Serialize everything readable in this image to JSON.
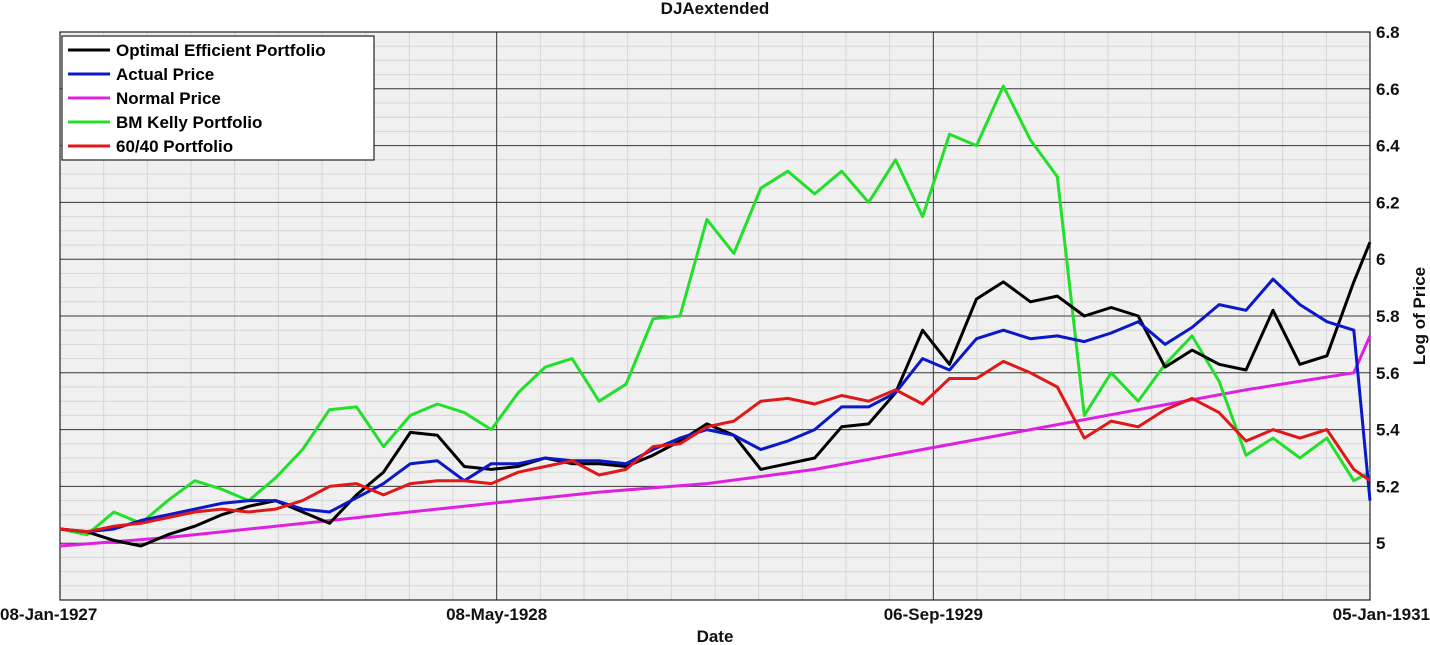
{
  "chart_data": {
    "type": "line",
    "title": "DJAextended",
    "xlabel": "Date",
    "ylabel": "Log of Price",
    "x_range": [
      "1927-01-08",
      "1931-01-05"
    ],
    "x_tick_labels": [
      {
        "date": "1927-01-08",
        "label": "08-Jan-1927"
      },
      {
        "date": "1928-05-08",
        "label": "08-May-1928"
      },
      {
        "date": "1929-09-06",
        "label": "06-Sep-1929"
      },
      {
        "date": "1931-01-05",
        "label": "05-Jan-1931"
      }
    ],
    "ylim": [
      4.8,
      6.8
    ],
    "y_ticks": [
      5,
      5.2,
      5.4,
      5.6,
      5.8,
      6,
      6.2,
      6.4,
      6.6,
      6.8
    ],
    "y_tick_labels": [
      "5",
      "5.2",
      "5.4",
      "5.6",
      "5.8",
      "6",
      "6.2",
      "6.4",
      "6.6",
      "6.8"
    ],
    "y_axis_side": "right",
    "grid": true,
    "legend_position": "top-left",
    "series": [
      {
        "name": "Optimal Efficient Portfolio",
        "color": "#000000",
        "points": [
          [
            "1927-01-08",
            5.05
          ],
          [
            "1927-02-07",
            5.04
          ],
          [
            "1927-03-09",
            5.01
          ],
          [
            "1927-04-08",
            4.99
          ],
          [
            "1927-05-08",
            5.03
          ],
          [
            "1927-06-07",
            5.06
          ],
          [
            "1927-07-07",
            5.1
          ],
          [
            "1927-08-06",
            5.13
          ],
          [
            "1927-09-05",
            5.15
          ],
          [
            "1927-10-05",
            5.11
          ],
          [
            "1927-11-04",
            5.07
          ],
          [
            "1927-12-04",
            5.17
          ],
          [
            "1928-01-03",
            5.25
          ],
          [
            "1928-02-02",
            5.39
          ],
          [
            "1928-03-03",
            5.38
          ],
          [
            "1928-04-02",
            5.27
          ],
          [
            "1928-05-02",
            5.26
          ],
          [
            "1928-06-01",
            5.27
          ],
          [
            "1928-07-01",
            5.3
          ],
          [
            "1928-07-31",
            5.28
          ],
          [
            "1928-08-30",
            5.28
          ],
          [
            "1928-09-29",
            5.27
          ],
          [
            "1928-10-29",
            5.31
          ],
          [
            "1928-11-28",
            5.36
          ],
          [
            "1928-12-28",
            5.42
          ],
          [
            "1929-01-27",
            5.38
          ],
          [
            "1929-02-26",
            5.26
          ],
          [
            "1929-03-28",
            5.28
          ],
          [
            "1929-04-27",
            5.3
          ],
          [
            "1929-05-27",
            5.41
          ],
          [
            "1929-06-26",
            5.42
          ],
          [
            "1929-07-26",
            5.53
          ],
          [
            "1929-08-25",
            5.75
          ],
          [
            "1929-09-24",
            5.63
          ],
          [
            "1929-10-24",
            5.86
          ],
          [
            "1929-11-23",
            5.92
          ],
          [
            "1929-12-23",
            5.85
          ],
          [
            "1930-01-22",
            5.87
          ],
          [
            "1930-02-21",
            5.8
          ],
          [
            "1930-03-23",
            5.83
          ],
          [
            "1930-04-22",
            5.8
          ],
          [
            "1930-05-22",
            5.62
          ],
          [
            "1930-06-21",
            5.68
          ],
          [
            "1930-07-21",
            5.63
          ],
          [
            "1930-08-20",
            5.61
          ],
          [
            "1930-09-19",
            5.82
          ],
          [
            "1930-10-19",
            5.63
          ],
          [
            "1930-11-18",
            5.66
          ],
          [
            "1930-12-18",
            5.92
          ],
          [
            "1931-01-05",
            6.06
          ]
        ]
      },
      {
        "name": "Actual Price",
        "color": "#0a18c8",
        "points": [
          [
            "1927-01-08",
            5.05
          ],
          [
            "1927-02-07",
            5.04
          ],
          [
            "1927-03-09",
            5.05
          ],
          [
            "1927-04-08",
            5.08
          ],
          [
            "1927-05-08",
            5.1
          ],
          [
            "1927-06-07",
            5.12
          ],
          [
            "1927-07-07",
            5.14
          ],
          [
            "1927-08-06",
            5.15
          ],
          [
            "1927-09-05",
            5.15
          ],
          [
            "1927-10-05",
            5.12
          ],
          [
            "1927-11-04",
            5.11
          ],
          [
            "1927-12-04",
            5.16
          ],
          [
            "1928-01-03",
            5.21
          ],
          [
            "1928-02-02",
            5.28
          ],
          [
            "1928-03-03",
            5.29
          ],
          [
            "1928-04-02",
            5.22
          ],
          [
            "1928-05-02",
            5.28
          ],
          [
            "1928-06-01",
            5.28
          ],
          [
            "1928-07-01",
            5.3
          ],
          [
            "1928-07-31",
            5.29
          ],
          [
            "1928-08-30",
            5.29
          ],
          [
            "1928-09-29",
            5.28
          ],
          [
            "1928-10-29",
            5.33
          ],
          [
            "1928-11-28",
            5.37
          ],
          [
            "1928-12-28",
            5.4
          ],
          [
            "1929-01-27",
            5.38
          ],
          [
            "1929-02-26",
            5.33
          ],
          [
            "1929-03-28",
            5.36
          ],
          [
            "1929-04-27",
            5.4
          ],
          [
            "1929-05-27",
            5.48
          ],
          [
            "1929-06-26",
            5.48
          ],
          [
            "1929-07-26",
            5.53
          ],
          [
            "1929-08-25",
            5.65
          ],
          [
            "1929-09-24",
            5.61
          ],
          [
            "1929-10-24",
            5.72
          ],
          [
            "1929-11-23",
            5.75
          ],
          [
            "1929-12-23",
            5.72
          ],
          [
            "1930-01-22",
            5.73
          ],
          [
            "1930-02-21",
            5.71
          ],
          [
            "1930-03-23",
            5.74
          ],
          [
            "1930-04-22",
            5.78
          ],
          [
            "1930-05-22",
            5.7
          ],
          [
            "1930-06-21",
            5.76
          ],
          [
            "1930-07-21",
            5.84
          ],
          [
            "1930-08-20",
            5.82
          ],
          [
            "1930-09-19",
            5.93
          ],
          [
            "1930-10-19",
            5.84
          ],
          [
            "1930-11-18",
            5.78
          ],
          [
            "1930-12-18",
            5.75
          ],
          [
            "1931-01-05",
            5.15
          ]
        ]
      },
      {
        "name": "Normal Price",
        "color": "#e020e0",
        "points": [
          [
            "1927-01-08",
            4.99
          ],
          [
            "1927-05-08",
            5.02
          ],
          [
            "1927-09-05",
            5.06
          ],
          [
            "1928-01-03",
            5.1
          ],
          [
            "1928-05-02",
            5.14
          ],
          [
            "1928-08-30",
            5.18
          ],
          [
            "1928-12-28",
            5.21
          ],
          [
            "1929-04-27",
            5.26
          ],
          [
            "1929-08-25",
            5.33
          ],
          [
            "1929-12-23",
            5.4
          ],
          [
            "1930-04-22",
            5.47
          ],
          [
            "1930-08-20",
            5.54
          ],
          [
            "1930-12-18",
            5.6
          ],
          [
            "1931-01-05",
            5.73
          ]
        ]
      },
      {
        "name": "BM Kelly Portfolio",
        "color": "#22e02a",
        "points": [
          [
            "1927-01-08",
            5.05
          ],
          [
            "1927-02-07",
            5.03
          ],
          [
            "1927-03-09",
            5.11
          ],
          [
            "1927-04-08",
            5.07
          ],
          [
            "1927-05-08",
            5.15
          ],
          [
            "1927-06-07",
            5.22
          ],
          [
            "1927-07-07",
            5.19
          ],
          [
            "1927-08-06",
            5.15
          ],
          [
            "1927-09-05",
            5.23
          ],
          [
            "1927-10-05",
            5.33
          ],
          [
            "1927-11-04",
            5.47
          ],
          [
            "1927-12-04",
            5.48
          ],
          [
            "1928-01-03",
            5.34
          ],
          [
            "1928-02-02",
            5.45
          ],
          [
            "1928-03-03",
            5.49
          ],
          [
            "1928-04-02",
            5.46
          ],
          [
            "1928-05-02",
            5.4
          ],
          [
            "1928-06-01",
            5.53
          ],
          [
            "1928-07-01",
            5.62
          ],
          [
            "1928-07-31",
            5.65
          ],
          [
            "1928-08-30",
            5.5
          ],
          [
            "1928-09-29",
            5.56
          ],
          [
            "1928-10-29",
            5.79
          ],
          [
            "1928-11-28",
            5.8
          ],
          [
            "1928-12-28",
            6.14
          ],
          [
            "1929-01-27",
            6.02
          ],
          [
            "1929-02-26",
            6.25
          ],
          [
            "1929-03-28",
            6.31
          ],
          [
            "1929-04-27",
            6.23
          ],
          [
            "1929-05-27",
            6.31
          ],
          [
            "1929-06-26",
            6.2
          ],
          [
            "1929-07-26",
            6.35
          ],
          [
            "1929-08-25",
            6.15
          ],
          [
            "1929-09-24",
            6.44
          ],
          [
            "1929-10-24",
            6.4
          ],
          [
            "1929-11-23",
            6.61
          ],
          [
            "1929-12-23",
            6.42
          ],
          [
            "1930-01-22",
            6.29
          ],
          [
            "1930-02-21",
            5.45
          ],
          [
            "1930-03-23",
            5.6
          ],
          [
            "1930-04-22",
            5.5
          ],
          [
            "1930-05-22",
            5.63
          ],
          [
            "1930-06-21",
            5.73
          ],
          [
            "1930-07-21",
            5.57
          ],
          [
            "1930-08-20",
            5.31
          ],
          [
            "1930-09-19",
            5.37
          ],
          [
            "1930-10-19",
            5.3
          ],
          [
            "1930-11-18",
            5.37
          ],
          [
            "1930-12-18",
            5.22
          ],
          [
            "1931-01-05",
            5.25
          ]
        ]
      },
      {
        "name": "60/40 Portfolio",
        "color": "#e01818",
        "points": [
          [
            "1927-01-08",
            5.05
          ],
          [
            "1927-02-07",
            5.04
          ],
          [
            "1927-03-09",
            5.06
          ],
          [
            "1927-04-08",
            5.07
          ],
          [
            "1927-05-08",
            5.09
          ],
          [
            "1927-06-07",
            5.11
          ],
          [
            "1927-07-07",
            5.12
          ],
          [
            "1927-08-06",
            5.11
          ],
          [
            "1927-09-05",
            5.12
          ],
          [
            "1927-10-05",
            5.15
          ],
          [
            "1927-11-04",
            5.2
          ],
          [
            "1927-12-04",
            5.21
          ],
          [
            "1928-01-03",
            5.17
          ],
          [
            "1928-02-02",
            5.21
          ],
          [
            "1928-03-03",
            5.22
          ],
          [
            "1928-04-02",
            5.22
          ],
          [
            "1928-05-02",
            5.21
          ],
          [
            "1928-06-01",
            5.25
          ],
          [
            "1928-07-01",
            5.27
          ],
          [
            "1928-07-31",
            5.29
          ],
          [
            "1928-08-30",
            5.24
          ],
          [
            "1928-09-29",
            5.26
          ],
          [
            "1928-10-29",
            5.34
          ],
          [
            "1928-11-28",
            5.35
          ],
          [
            "1928-12-28",
            5.41
          ],
          [
            "1929-01-27",
            5.43
          ],
          [
            "1929-02-26",
            5.5
          ],
          [
            "1929-03-28",
            5.51
          ],
          [
            "1929-04-27",
            5.49
          ],
          [
            "1929-05-27",
            5.52
          ],
          [
            "1929-06-26",
            5.5
          ],
          [
            "1929-07-26",
            5.54
          ],
          [
            "1929-08-25",
            5.49
          ],
          [
            "1929-09-24",
            5.58
          ],
          [
            "1929-10-24",
            5.58
          ],
          [
            "1929-11-23",
            5.64
          ],
          [
            "1929-12-23",
            5.6
          ],
          [
            "1930-01-22",
            5.55
          ],
          [
            "1930-02-21",
            5.37
          ],
          [
            "1930-03-23",
            5.43
          ],
          [
            "1930-04-22",
            5.41
          ],
          [
            "1930-05-22",
            5.47
          ],
          [
            "1930-06-21",
            5.51
          ],
          [
            "1930-07-21",
            5.46
          ],
          [
            "1930-08-20",
            5.36
          ],
          [
            "1930-09-19",
            5.4
          ],
          [
            "1930-10-19",
            5.37
          ],
          [
            "1930-11-18",
            5.4
          ],
          [
            "1930-12-18",
            5.26
          ],
          [
            "1931-01-05",
            5.22
          ]
        ]
      }
    ]
  }
}
